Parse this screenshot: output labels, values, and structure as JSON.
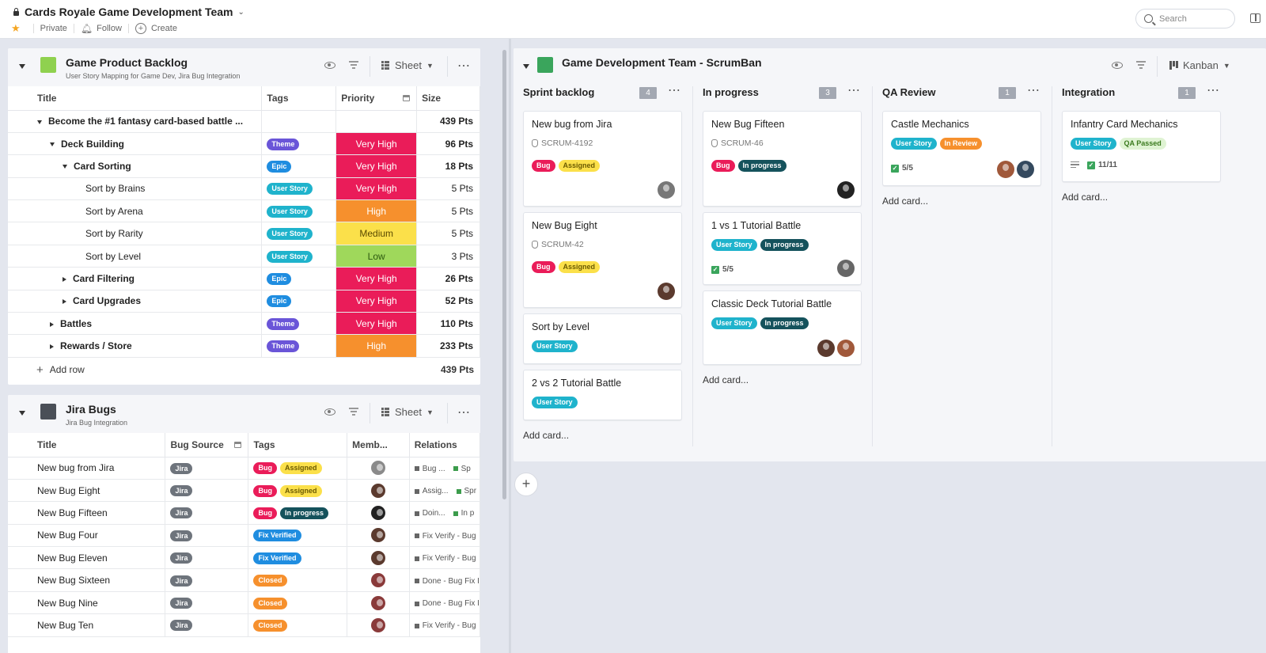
{
  "workspace": {
    "title": "Cards Royale Game Development Team",
    "private_label": "Private",
    "follow_label": "Follow",
    "create_label": "Create"
  },
  "search": {
    "placeholder": "Search"
  },
  "colors": {
    "very_high": "#ea1c59",
    "high": "#f6902d",
    "medium": "#fbe04a",
    "low": "#9fd85b",
    "theme": "#6a55d8",
    "epic": "#1f8de0",
    "user_story": "#1fb3cc",
    "bug": "#ea1c59",
    "assigned": "#fbe04a",
    "in_progress": "#15525c",
    "in_review": "#f6902d",
    "qa_passed": "#dff3d3",
    "fix_verified": "#1f8de0",
    "closed": "#f6902d",
    "jira": "#6e747c"
  },
  "backlog": {
    "title": "Game Product Backlog",
    "subtitle": "User Story Mapping for Game Dev, Jira Bug Integration",
    "icon": "sheet-icon",
    "view_label": "Sheet",
    "columns": [
      "Title",
      "Tags",
      "Priority",
      "Size"
    ],
    "rows": [
      {
        "title": "Become the #1 fantasy card-based battle ...",
        "level": 0,
        "toggle": "down",
        "bold": true,
        "tag": "",
        "priority": "",
        "size": "439 Pts"
      },
      {
        "title": "Deck Building",
        "level": 1,
        "toggle": "down",
        "bold": true,
        "tag": "Theme",
        "priority": "Very High",
        "size": "96 Pts"
      },
      {
        "title": "Card Sorting",
        "level": 2,
        "toggle": "down",
        "bold": true,
        "tag": "Epic",
        "priority": "Very High",
        "size": "18 Pts"
      },
      {
        "title": "Sort by Brains",
        "level": 3,
        "toggle": "",
        "bold": false,
        "tag": "User Story",
        "priority": "Very High",
        "size": "5 Pts"
      },
      {
        "title": "Sort by Arena",
        "level": 3,
        "toggle": "",
        "bold": false,
        "tag": "User Story",
        "priority": "High",
        "size": "5 Pts"
      },
      {
        "title": "Sort by Rarity",
        "level": 3,
        "toggle": "",
        "bold": false,
        "tag": "User Story",
        "priority": "Medium",
        "size": "5 Pts"
      },
      {
        "title": "Sort by Level",
        "level": 3,
        "toggle": "",
        "bold": false,
        "tag": "User Story",
        "priority": "Low",
        "size": "3 Pts"
      },
      {
        "title": "Card Filtering",
        "level": 2,
        "toggle": "right",
        "bold": true,
        "tag": "Epic",
        "priority": "Very High",
        "size": "26 Pts"
      },
      {
        "title": "Card Upgrades",
        "level": 2,
        "toggle": "right",
        "bold": true,
        "tag": "Epic",
        "priority": "Very High",
        "size": "52 Pts"
      },
      {
        "title": "Battles",
        "level": 1,
        "toggle": "right",
        "bold": true,
        "tag": "Theme",
        "priority": "Very High",
        "size": "110 Pts"
      },
      {
        "title": "Rewards / Store",
        "level": 1,
        "toggle": "right",
        "bold": true,
        "tag": "Theme",
        "priority": "High",
        "size": "233 Pts"
      }
    ],
    "add_row_label": "Add row",
    "total": "439 Pts"
  },
  "bugs": {
    "title": "Jira Bugs",
    "subtitle": "Jira Bug Integration",
    "icon": "sheet-icon",
    "view_label": "Sheet",
    "columns": [
      "Title",
      "Bug Source",
      "Tags",
      "Memb...",
      "Relations"
    ],
    "rows": [
      {
        "title": "New bug from Jira",
        "source": "Jira",
        "tags": [
          "Bug",
          "Assigned"
        ],
        "avatar": "#8a8a8a",
        "rel1": "Bug ...",
        "rel2": "Sp"
      },
      {
        "title": "New Bug Eight",
        "source": "Jira",
        "tags": [
          "Bug",
          "Assigned"
        ],
        "avatar": "#5b3a2e",
        "rel1": "Assig...",
        "rel2": "Spr"
      },
      {
        "title": "New Bug Fifteen",
        "source": "Jira",
        "tags": [
          "Bug",
          "In progress"
        ],
        "avatar": "#222222",
        "rel1": "Doin...",
        "rel2": "In p"
      },
      {
        "title": "New Bug Four",
        "source": "Jira",
        "tags": [
          "Fix Verified"
        ],
        "avatar": "#5b3a2e",
        "rel1": "Fix Verify - Bug",
        "rel2": ""
      },
      {
        "title": "New Bug Eleven",
        "source": "Jira",
        "tags": [
          "Fix Verified"
        ],
        "avatar": "#5b3a2e",
        "rel1": "Fix Verify - Bug",
        "rel2": ""
      },
      {
        "title": "New Bug Sixteen",
        "source": "Jira",
        "tags": [
          "Closed"
        ],
        "avatar": "#8a3a3a",
        "rel1": "Done - Bug Fix I",
        "rel2": ""
      },
      {
        "title": "New Bug Nine",
        "source": "Jira",
        "tags": [
          "Closed"
        ],
        "avatar": "#8a3a3a",
        "rel1": "Done - Bug Fix I",
        "rel2": ""
      },
      {
        "title": "New Bug Ten",
        "source": "Jira",
        "tags": [
          "Closed"
        ],
        "avatar": "#8a3a3a",
        "rel1": "Fix Verify - Bug",
        "rel2": ""
      }
    ]
  },
  "kanban": {
    "title": "Game Development Team - ScrumBan",
    "icon": "kanban-icon",
    "view_label": "Kanban",
    "add_card_label": "Add card...",
    "columns": [
      {
        "name": "Sprint backlog",
        "count": "4",
        "cards": [
          {
            "title": "New bug from Jira",
            "id": "SCRUM-4192",
            "tags": [
              "Bug",
              "Assigned"
            ],
            "avatars": [
              "#777777"
            ],
            "check": ""
          },
          {
            "title": "New Bug Eight",
            "id": "SCRUM-42",
            "tags": [
              "Bug",
              "Assigned"
            ],
            "avatars": [
              "#5b3a2e"
            ],
            "check": ""
          },
          {
            "title": "Sort by Level",
            "id": "",
            "tags": [
              "User Story"
            ],
            "avatars": [],
            "check": ""
          },
          {
            "title": "2 vs 2 Tutorial Battle",
            "id": "",
            "tags": [
              "User Story"
            ],
            "avatars": [],
            "check": ""
          }
        ]
      },
      {
        "name": "In progress",
        "count": "3",
        "cards": [
          {
            "title": "New Bug Fifteen",
            "id": "SCRUM-46",
            "tags": [
              "Bug",
              "In progress"
            ],
            "avatars": [
              "#222222"
            ],
            "check": ""
          },
          {
            "title": "1 vs 1 Tutorial Battle",
            "id": "",
            "tags": [
              "User Story",
              "In progress"
            ],
            "avatars": [
              "#666666"
            ],
            "check": "5/5"
          },
          {
            "title": "Classic Deck Tutorial Battle",
            "id": "",
            "tags": [
              "User Story",
              "In progress"
            ],
            "avatars": [
              "#5b3a2e",
              "#a0583a"
            ],
            "check": ""
          }
        ]
      },
      {
        "name": "QA Review",
        "count": "1",
        "cards": [
          {
            "title": "Castle Mechanics",
            "id": "",
            "tags": [
              "User Story",
              "In Review"
            ],
            "avatars": [
              "#a0583a",
              "#34495e"
            ],
            "check": "5/5"
          }
        ]
      },
      {
        "name": "Integration",
        "count": "1",
        "cards": [
          {
            "title": "Infantry Card Mechanics",
            "id": "",
            "tags": [
              "User Story",
              "QA Passed"
            ],
            "avatars": [],
            "check": "11/11"
          }
        ]
      }
    ]
  }
}
